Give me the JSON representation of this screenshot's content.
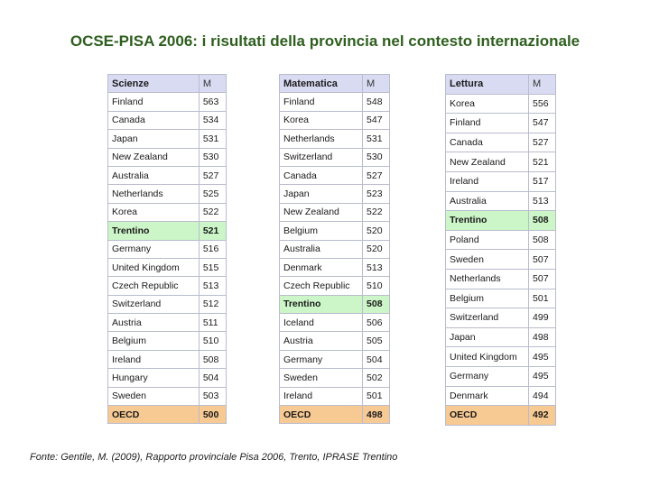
{
  "title": "OCSE-PISA 2006: i risultati della provincia nel contesto internazionale",
  "tables": [
    {
      "id": "scienze",
      "header": "Scienze",
      "m_header": "M",
      "rows": [
        {
          "name": "Finland",
          "value": "563"
        },
        {
          "name": "Canada",
          "value": "534"
        },
        {
          "name": "Japan",
          "value": "531"
        },
        {
          "name": "New Zealand",
          "value": "530"
        },
        {
          "name": "Australia",
          "value": "527"
        },
        {
          "name": "Netherlands",
          "value": "525"
        },
        {
          "name": "Korea",
          "value": "522"
        },
        {
          "name": "Trentino",
          "value": "521",
          "highlight": "trentino"
        },
        {
          "name": "Germany",
          "value": "516"
        },
        {
          "name": "United Kingdom",
          "value": "515"
        },
        {
          "name": "Czech Republic",
          "value": "513"
        },
        {
          "name": "Switzerland",
          "value": "512"
        },
        {
          "name": "Austria",
          "value": "511"
        },
        {
          "name": "Belgium",
          "value": "510"
        },
        {
          "name": "Ireland",
          "value": "508"
        },
        {
          "name": "Hungary",
          "value": "504"
        },
        {
          "name": "Sweden",
          "value": "503"
        },
        {
          "name": "OECD",
          "value": "500",
          "highlight": "oecd"
        }
      ]
    },
    {
      "id": "matematica",
      "header": "Matematica",
      "m_header": "M",
      "rows": [
        {
          "name": "Finland",
          "value": "548"
        },
        {
          "name": "Korea",
          "value": "547"
        },
        {
          "name": "Netherlands",
          "value": "531"
        },
        {
          "name": "Switzerland",
          "value": "530"
        },
        {
          "name": "Canada",
          "value": "527"
        },
        {
          "name": "Japan",
          "value": "523"
        },
        {
          "name": "New Zealand",
          "value": "522"
        },
        {
          "name": "Belgium",
          "value": "520"
        },
        {
          "name": "Australia",
          "value": "520"
        },
        {
          "name": "Denmark",
          "value": "513"
        },
        {
          "name": "Czech Republic",
          "value": "510"
        },
        {
          "name": "Trentino",
          "value": "508",
          "highlight": "trentino"
        },
        {
          "name": "Iceland",
          "value": "506"
        },
        {
          "name": "Austria",
          "value": "505"
        },
        {
          "name": "Germany",
          "value": "504"
        },
        {
          "name": "Sweden",
          "value": "502"
        },
        {
          "name": "Ireland",
          "value": "501"
        },
        {
          "name": "OECD",
          "value": "498",
          "highlight": "oecd"
        }
      ]
    },
    {
      "id": "lettura",
      "header": "Lettura",
      "m_header": "M",
      "rows": [
        {
          "name": "Korea",
          "value": "556"
        },
        {
          "name": "Finland",
          "value": "547"
        },
        {
          "name": "Canada",
          "value": "527"
        },
        {
          "name": "New Zealand",
          "value": "521"
        },
        {
          "name": "Ireland",
          "value": "517"
        },
        {
          "name": "Australia",
          "value": "513"
        },
        {
          "name": "Trentino",
          "value": "508",
          "highlight": "trentino"
        },
        {
          "name": "Poland",
          "value": "508"
        },
        {
          "name": "Sweden",
          "value": "507"
        },
        {
          "name": "Netherlands",
          "value": "507"
        },
        {
          "name": "Belgium",
          "value": "501"
        },
        {
          "name": "Switzerland",
          "value": "499"
        },
        {
          "name": "Japan",
          "value": "498"
        },
        {
          "name": "United Kingdom",
          "value": "495"
        },
        {
          "name": "Germany",
          "value": "495"
        },
        {
          "name": "Denmark",
          "value": "494"
        },
        {
          "name": "OECD",
          "value": "492",
          "highlight": "oecd"
        }
      ]
    }
  ],
  "source": "Fonte: Gentile, M. (2009), Rapporto provinciale Pisa 2006, Trento, IPRASE Trentino",
  "colors": {
    "title": "#2e5f1e",
    "header_bg": "#d9dbf3",
    "trentino_bg": "#ccf5c8",
    "oecd_bg": "#f7c993"
  }
}
